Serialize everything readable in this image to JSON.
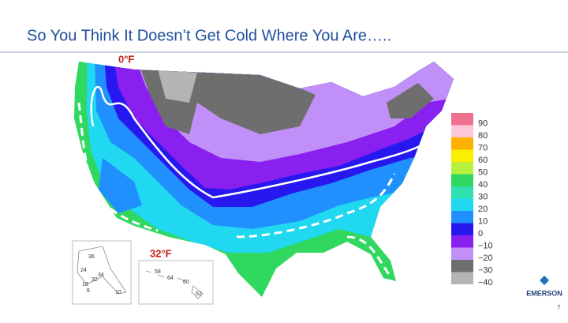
{
  "header": {
    "title": "So You Think It Doesn’t Get Cold Where You Are….."
  },
  "map": {
    "annotations": {
      "zero_line": "0°F",
      "freeze_line": "32°F"
    },
    "legend": [
      {
        "label": "90",
        "color": "#f07090"
      },
      {
        "label": "80",
        "color": "#ffc8d8"
      },
      {
        "label": "70",
        "color": "#ffb000"
      },
      {
        "label": "60",
        "color": "#f8f000"
      },
      {
        "label": "50",
        "color": "#b8f040"
      },
      {
        "label": "40",
        "color": "#30d860"
      },
      {
        "label": "30",
        "color": "#30e0b0"
      },
      {
        "label": "20",
        "color": "#20d8f0"
      },
      {
        "label": "10",
        "color": "#2090ff"
      },
      {
        "label": "0",
        "color": "#2818f0"
      },
      {
        "label": "−10",
        "color": "#8a20f0"
      },
      {
        "label": "−20",
        "color": "#c090f8"
      },
      {
        "label": "−30",
        "color": "#6e6e6e"
      },
      {
        "label": "−40",
        "color": "#b4b4b4"
      }
    ],
    "alaska_labels": [
      "36",
      "24",
      "34",
      "32",
      "18",
      "6",
      "10"
    ],
    "hawaii_labels": [
      "58",
      "64",
      "60",
      "62"
    ]
  },
  "footer": {
    "logo": "EMERSON",
    "page": "7"
  }
}
